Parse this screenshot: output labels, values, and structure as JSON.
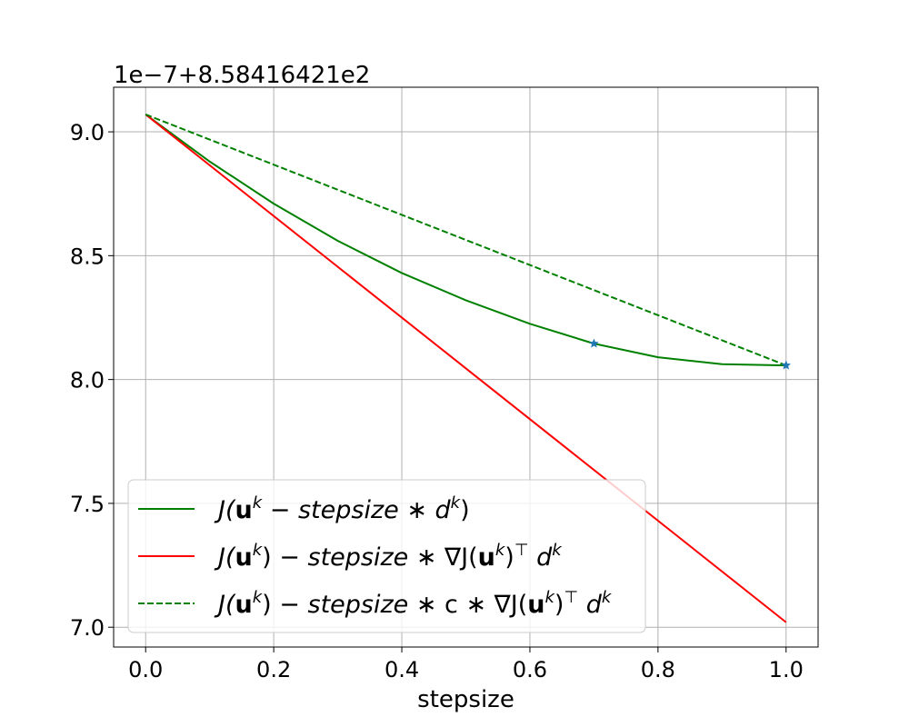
{
  "chart_data": {
    "type": "line",
    "xlabel": "stepsize",
    "offset_text": "1e−7+8.58416421e2",
    "xlim": [
      -0.05,
      1.05
    ],
    "ylim": [
      6.92,
      9.18
    ],
    "grid": true,
    "legend_position": "lower-left",
    "x_ticks": [
      0.0,
      0.2,
      0.4,
      0.6,
      0.8,
      1.0
    ],
    "x_tick_labels": [
      "0.0",
      "0.2",
      "0.4",
      "0.6",
      "0.8",
      "1.0"
    ],
    "y_ticks": [
      7.0,
      7.5,
      8.0,
      8.5,
      9.0
    ],
    "y_tick_labels": [
      "7.0",
      "7.5",
      "8.0",
      "8.5",
      "9.0"
    ],
    "series": [
      {
        "legend": {
          "p1": "J(",
          "p2": "u",
          "p3": "k",
          "p4": " − ",
          "p5": "stepsize",
          "p6": " ∗ ",
          "p7": "d",
          "p8": "k",
          "p9": ")"
        },
        "color": "#008000",
        "style": "solid",
        "x": [
          0.0,
          0.1,
          0.2,
          0.3,
          0.4,
          0.5,
          0.6,
          0.7,
          0.8,
          0.9,
          1.0
        ],
        "y": [
          9.07,
          8.88,
          8.71,
          8.56,
          8.43,
          8.32,
          8.225,
          8.145,
          8.09,
          8.062,
          8.057
        ]
      },
      {
        "legend": {
          "p1": "J(",
          "p2": "u",
          "p3": "k",
          "p4": ") − ",
          "p5": "stepsize",
          "p6": " ∗ ∇J(",
          "p7": "u",
          "p8": "k",
          "p9": ")",
          "p10": "⊤",
          "p11": " d",
          "p12": "k"
        },
        "color": "#ff0000",
        "style": "solid",
        "x": [
          0.0,
          1.0
        ],
        "y": [
          9.07,
          7.02
        ]
      },
      {
        "legend": {
          "p1": "J(",
          "p2": "u",
          "p3": "k",
          "p4": ") − ",
          "p5": "stepsize",
          "p6": " ∗ c ∗ ∇J(",
          "p7": "u",
          "p8": "k",
          "p9": ")",
          "p10": "⊤",
          "p11": " d",
          "p12": "k"
        },
        "color": "#008000",
        "style": "dashed",
        "x": [
          0.0,
          1.0
        ],
        "y": [
          9.07,
          8.057
        ]
      }
    ],
    "markers": [
      {
        "x": 0.7,
        "y": 8.145,
        "symbol": "star",
        "color": "#1f77b4"
      },
      {
        "x": 1.0,
        "y": 8.057,
        "symbol": "star",
        "color": "#1f77b4"
      }
    ]
  }
}
